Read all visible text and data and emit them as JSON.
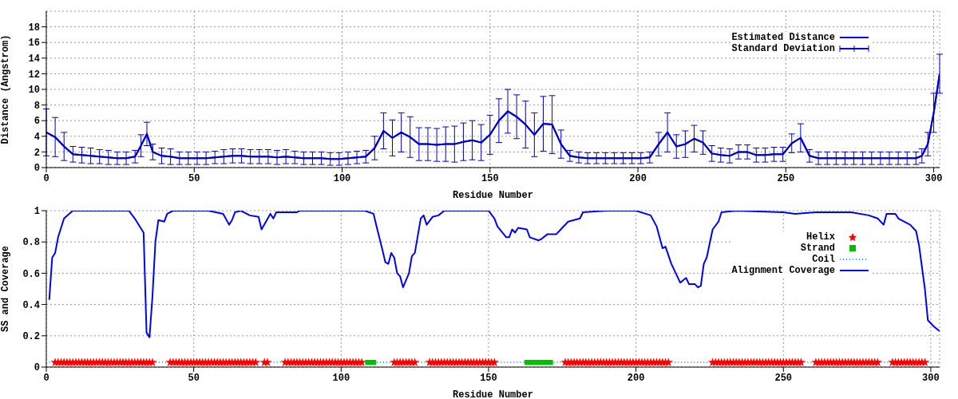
{
  "chart_data": [
    {
      "type": "line",
      "xlabel": "Residue Number",
      "ylabel": "Distance (Angstrom)",
      "xlim": [
        0,
        302
      ],
      "xticks": [
        0,
        50,
        100,
        150,
        200,
        250,
        300
      ],
      "ylim": [
        0,
        20
      ],
      "yticks": [
        0,
        2,
        4,
        6,
        8,
        10,
        12,
        14,
        16,
        18
      ],
      "grid": true,
      "legend": "top right",
      "marker": "none",
      "x": [
        0,
        3,
        6,
        9,
        12,
        15,
        18,
        21,
        24,
        27,
        30,
        32,
        34,
        36,
        39,
        42,
        45,
        48,
        51,
        54,
        57,
        60,
        63,
        66,
        69,
        72,
        75,
        78,
        81,
        84,
        87,
        90,
        93,
        96,
        99,
        102,
        105,
        108,
        111,
        114,
        117,
        120,
        123,
        126,
        129,
        132,
        135,
        138,
        141,
        144,
        147,
        150,
        153,
        156,
        159,
        162,
        165,
        168,
        171,
        174,
        177,
        180,
        183,
        186,
        189,
        192,
        195,
        198,
        201,
        204,
        207,
        210,
        213,
        216,
        219,
        222,
        225,
        228,
        231,
        234,
        237,
        240,
        243,
        246,
        249,
        252,
        255,
        258,
        261,
        264,
        267,
        270,
        273,
        276,
        279,
        282,
        285,
        288,
        291,
        294,
        296,
        298,
        300,
        302
      ],
      "series": [
        {
          "name": "Estimated Distance",
          "color": "#0000ff",
          "values": [
            4.5,
            3.9,
            2.7,
            1.7,
            1.6,
            1.5,
            1.4,
            1.3,
            1.2,
            1.2,
            1.4,
            2.8,
            4.3,
            2.0,
            1.5,
            1.4,
            1.2,
            1.2,
            1.2,
            1.2,
            1.3,
            1.4,
            1.5,
            1.5,
            1.4,
            1.4,
            1.4,
            1.3,
            1.4,
            1.3,
            1.2,
            1.2,
            1.2,
            1.1,
            1.1,
            1.2,
            1.3,
            1.4,
            2.5,
            4.7,
            3.8,
            4.5,
            3.9,
            3.0,
            3.0,
            2.9,
            3.0,
            3.0,
            3.3,
            3.5,
            3.2,
            4.2,
            6.0,
            7.2,
            6.5,
            5.5,
            4.2,
            5.6,
            5.5,
            3.0,
            1.5,
            1.3,
            1.2,
            1.2,
            1.2,
            1.2,
            1.2,
            1.2,
            1.2,
            1.3,
            3.0,
            4.5,
            2.7,
            3.0,
            3.7,
            3.2,
            1.8,
            1.6,
            1.5,
            2.0,
            2.0,
            1.6,
            1.6,
            1.7,
            1.7,
            3.1,
            3.8,
            1.5,
            1.2,
            1.2,
            1.2,
            1.2,
            1.2,
            1.2,
            1.2,
            1.2,
            1.2,
            1.2,
            1.2,
            1.2,
            1.5,
            3.0,
            7.0,
            12.0
          ]
        },
        {
          "name": "Standard Deviation",
          "color": "#0000cc",
          "values": [
            4.5,
            3.9,
            2.7,
            1.7,
            1.6,
            1.5,
            1.4,
            1.3,
            1.2,
            1.2,
            1.4,
            2.8,
            4.3,
            2.0,
            1.5,
            1.4,
            1.2,
            1.2,
            1.2,
            1.2,
            1.3,
            1.4,
            1.5,
            1.5,
            1.4,
            1.4,
            1.4,
            1.3,
            1.4,
            1.3,
            1.2,
            1.2,
            1.2,
            1.1,
            1.1,
            1.2,
            1.3,
            1.4,
            2.5,
            4.7,
            3.8,
            4.5,
            3.9,
            3.0,
            3.0,
            2.9,
            3.0,
            3.0,
            3.3,
            3.5,
            3.2,
            4.2,
            6.0,
            7.2,
            6.5,
            5.5,
            4.2,
            5.6,
            5.5,
            3.0,
            1.5,
            1.3,
            1.2,
            1.2,
            1.2,
            1.2,
            1.2,
            1.2,
            1.2,
            1.3,
            3.0,
            4.5,
            2.7,
            3.0,
            3.7,
            3.2,
            1.8,
            1.6,
            1.5,
            2.0,
            2.0,
            1.6,
            1.6,
            1.7,
            1.7,
            3.1,
            3.8,
            1.5,
            1.2,
            1.2,
            1.2,
            1.2,
            1.2,
            1.2,
            1.2,
            1.2,
            1.2,
            1.2,
            1.2,
            1.2,
            1.5,
            3.0,
            7.0,
            12.0
          ],
          "errors": [
            3,
            2.5,
            1.8,
            1.0,
            1.0,
            1.0,
            0.9,
            0.9,
            0.8,
            0.8,
            0.8,
            1.4,
            1.5,
            1.0,
            1.0,
            1.0,
            0.8,
            0.8,
            0.8,
            0.8,
            0.8,
            0.9,
            0.9,
            0.9,
            0.9,
            0.9,
            0.9,
            0.9,
            0.9,
            0.8,
            0.8,
            0.8,
            0.8,
            0.8,
            0.8,
            0.8,
            0.8,
            0.8,
            1.5,
            2.3,
            2.3,
            2.5,
            2.6,
            2.1,
            2.1,
            2.1,
            2.2,
            2.3,
            2.4,
            2.5,
            2.3,
            2.5,
            2.8,
            2.8,
            2.8,
            3.0,
            2.8,
            3.5,
            3.7,
            1.8,
            0.7,
            0.7,
            0.7,
            0.7,
            0.7,
            0.7,
            0.7,
            0.7,
            0.7,
            0.7,
            1.5,
            2.5,
            1.5,
            1.7,
            1.7,
            1.5,
            1.0,
            0.9,
            0.9,
            0.9,
            0.9,
            0.9,
            0.9,
            0.9,
            0.9,
            1.2,
            1.8,
            0.8,
            0.8,
            0.8,
            0.8,
            0.8,
            0.8,
            0.8,
            0.8,
            0.8,
            0.8,
            0.8,
            0.8,
            0.8,
            0.9,
            1.5,
            2.5,
            2.5
          ]
        }
      ]
    },
    {
      "type": "line",
      "xlabel": "Residue Number",
      "ylabel": "SS and Coverage",
      "xlim": [
        0,
        303
      ],
      "xticks": [
        0,
        50,
        100,
        150,
        200,
        250,
        300
      ],
      "ylim": [
        0,
        1
      ],
      "yticks": [
        0,
        0.2,
        0.4,
        0.6,
        0.8,
        1
      ],
      "grid": true,
      "legend": "top right",
      "series": [
        {
          "name": "Helix",
          "type": "scatter",
          "marker": "star",
          "color": "#ff0000",
          "x": [
            3,
            4,
            5,
            6,
            7,
            8,
            9,
            10,
            11,
            12,
            13,
            14,
            15,
            16,
            17,
            18,
            19,
            20,
            21,
            22,
            23,
            24,
            25,
            26,
            27,
            28,
            29,
            30,
            31,
            32,
            33,
            34,
            35,
            36,
            42,
            43,
            44,
            45,
            46,
            47,
            48,
            49,
            50,
            51,
            52,
            53,
            54,
            55,
            56,
            57,
            58,
            59,
            60,
            61,
            62,
            63,
            64,
            65,
            66,
            67,
            68,
            69,
            70,
            71,
            74,
            75,
            81,
            82,
            83,
            84,
            85,
            86,
            87,
            88,
            89,
            90,
            91,
            92,
            93,
            94,
            95,
            96,
            97,
            98,
            99,
            100,
            101,
            102,
            103,
            104,
            105,
            106,
            107,
            118,
            119,
            120,
            121,
            122,
            123,
            124,
            125,
            130,
            131,
            132,
            133,
            134,
            135,
            136,
            137,
            138,
            139,
            140,
            141,
            142,
            143,
            144,
            145,
            146,
            147,
            148,
            149,
            150,
            151,
            152,
            176,
            177,
            178,
            179,
            180,
            181,
            182,
            183,
            184,
            185,
            186,
            187,
            188,
            189,
            190,
            191,
            192,
            193,
            194,
            195,
            196,
            197,
            198,
            199,
            200,
            201,
            202,
            203,
            204,
            205,
            206,
            207,
            208,
            209,
            210,
            211,
            226,
            227,
            228,
            229,
            230,
            231,
            232,
            233,
            234,
            235,
            236,
            237,
            238,
            239,
            240,
            241,
            242,
            243,
            244,
            245,
            246,
            247,
            248,
            249,
            250,
            251,
            252,
            253,
            254,
            255,
            256,
            261,
            262,
            263,
            264,
            265,
            266,
            267,
            268,
            269,
            270,
            271,
            272,
            273,
            274,
            275,
            276,
            277,
            278,
            279,
            280,
            281,
            282,
            287,
            288,
            289,
            290,
            291,
            292,
            293,
            294,
            295,
            296,
            297,
            298
          ],
          "values": [
            0.03,
            0.03,
            0.03,
            0.03,
            0.03,
            0.03,
            0.03,
            0.03,
            0.03,
            0.03,
            0.03,
            0.03,
            0.03,
            0.03,
            0.03,
            0.03,
            0.03,
            0.03,
            0.03,
            0.03,
            0.03,
            0.03,
            0.03,
            0.03,
            0.03,
            0.03,
            0.03,
            0.03,
            0.03,
            0.03,
            0.03,
            0.03,
            0.03,
            0.03,
            0.03,
            0.03,
            0.03,
            0.03,
            0.03,
            0.03,
            0.03,
            0.03,
            0.03,
            0.03,
            0.03,
            0.03,
            0.03,
            0.03,
            0.03,
            0.03,
            0.03,
            0.03,
            0.03,
            0.03,
            0.03,
            0.03,
            0.03,
            0.03,
            0.03,
            0.03,
            0.03,
            0.03,
            0.03,
            0.03,
            0.03,
            0.03,
            0.03,
            0.03,
            0.03,
            0.03,
            0.03,
            0.03,
            0.03,
            0.03,
            0.03,
            0.03,
            0.03,
            0.03,
            0.03,
            0.03,
            0.03,
            0.03,
            0.03,
            0.03,
            0.03,
            0.03,
            0.03,
            0.03,
            0.03,
            0.03,
            0.03,
            0.03,
            0.03,
            0.03,
            0.03,
            0.03,
            0.03,
            0.03,
            0.03,
            0.03,
            0.03,
            0.03,
            0.03,
            0.03,
            0.03,
            0.03,
            0.03,
            0.03,
            0.03,
            0.03,
            0.03,
            0.03,
            0.03,
            0.03,
            0.03,
            0.03,
            0.03,
            0.03,
            0.03,
            0.03,
            0.03,
            0.03,
            0.03,
            0.03,
            0.03,
            0.03,
            0.03,
            0.03,
            0.03,
            0.03,
            0.03,
            0.03,
            0.03,
            0.03,
            0.03,
            0.03,
            0.03,
            0.03,
            0.03,
            0.03,
            0.03,
            0.03,
            0.03,
            0.03,
            0.03,
            0.03,
            0.03,
            0.03,
            0.03,
            0.03,
            0.03,
            0.03,
            0.03,
            0.03,
            0.03,
            0.03,
            0.03,
            0.03,
            0.03,
            0.03,
            0.03,
            0.03,
            0.03,
            0.03,
            0.03,
            0.03,
            0.03,
            0.03,
            0.03,
            0.03,
            0.03,
            0.03,
            0.03,
            0.03,
            0.03,
            0.03,
            0.03,
            0.03,
            0.03,
            0.03,
            0.03,
            0.03,
            0.03,
            0.03,
            0.03,
            0.03,
            0.03,
            0.03,
            0.03,
            0.03,
            0.03,
            0.03,
            0.03,
            0.03,
            0.03,
            0.03,
            0.03,
            0.03,
            0.03,
            0.03,
            0.03,
            0.03,
            0.03,
            0.03,
            0.03,
            0.03,
            0.03,
            0.03,
            0.03,
            0.03,
            0.03,
            0.03,
            0.03,
            0.03,
            0.03,
            0.03,
            0.03,
            0.03,
            0.03,
            0.03,
            0.03,
            0.03,
            0.03,
            0.03,
            0.03
          ]
        },
        {
          "name": "Strand",
          "type": "scatter",
          "marker": "square",
          "color": "#00c000",
          "x": [
            109,
            110,
            111,
            163,
            164,
            165,
            166,
            167,
            168,
            169,
            170,
            171
          ],
          "values": [
            0.03,
            0.03,
            0.03,
            0.03,
            0.03,
            0.03,
            0.03,
            0.03,
            0.03,
            0.03,
            0.03,
            0.03
          ]
        },
        {
          "name": "Coil",
          "line_style": "dotted",
          "marker": "none",
          "color": "#3399ff",
          "x": [
            1,
            3,
            20,
            36,
            42,
            56,
            71,
            74,
            74.5,
            76,
            81,
            94,
            111,
            118,
            121,
            125,
            130,
            140,
            152,
            163,
            167,
            171,
            176,
            190,
            211,
            226,
            240,
            256,
            261,
            270,
            282,
            287,
            292,
            298,
            303
          ],
          "values": [
            0.03,
            0.03,
            null,
            0.03,
            0.03,
            null,
            0.03,
            0.03,
            null,
            0.03,
            0.03,
            null,
            0.03,
            0.03,
            null,
            0.03,
            0.03,
            null,
            0.03,
            0.03,
            null,
            0.03,
            0.03,
            null,
            0.03,
            0.03,
            null,
            0.03,
            0.03,
            null,
            0.03,
            0.03,
            null,
            0.03,
            0.03
          ]
        },
        {
          "name": "Alignment Coverage",
          "marker": "none",
          "color": "#0000ff",
          "x": [
            1,
            2,
            3,
            4,
            6,
            9,
            28,
            30,
            33,
            34,
            35,
            36,
            37,
            38,
            40,
            41,
            43,
            55,
            60,
            62,
            63,
            64,
            66,
            69,
            72,
            73,
            76,
            77,
            78,
            85,
            86,
            108,
            111,
            112,
            114,
            115,
            116,
            117,
            118,
            119,
            120,
            121,
            123,
            124,
            125,
            127,
            128,
            129,
            131,
            133,
            135,
            147,
            150,
            152,
            153,
            156,
            157,
            158,
            159,
            160,
            163,
            164,
            167,
            168,
            170,
            173,
            175,
            177,
            181,
            182,
            190,
            200,
            205,
            207,
            209,
            210,
            212,
            215,
            217,
            218,
            220,
            221,
            222,
            223,
            224,
            226,
            228,
            229,
            234,
            250,
            254,
            261,
            273,
            279,
            282,
            284,
            285,
            288,
            289,
            293,
            295,
            296,
            298,
            299,
            301,
            303
          ],
          "values": [
            0.43,
            0.7,
            0.73,
            0.83,
            0.95,
            1.0,
            1.0,
            0.95,
            0.86,
            0.22,
            0.19,
            0.45,
            0.8,
            0.94,
            0.93,
            0.98,
            1.0,
            1.0,
            0.98,
            0.91,
            0.94,
            0.99,
            1.0,
            0.97,
            0.96,
            0.88,
            0.98,
            0.95,
            0.99,
            0.99,
            1.0,
            1.0,
            0.98,
            0.9,
            0.75,
            0.67,
            0.66,
            0.73,
            0.7,
            0.6,
            0.58,
            0.51,
            0.6,
            0.71,
            0.73,
            0.95,
            0.97,
            0.91,
            0.96,
            0.97,
            1.0,
            1.0,
            1.0,
            0.95,
            0.9,
            0.83,
            0.83,
            0.88,
            0.86,
            0.89,
            0.88,
            0.83,
            0.81,
            0.82,
            0.85,
            0.85,
            0.89,
            0.93,
            0.95,
            0.99,
            1.0,
            1.0,
            0.97,
            0.9,
            0.76,
            0.77,
            0.66,
            0.54,
            0.57,
            0.53,
            0.53,
            0.51,
            0.52,
            0.66,
            0.7,
            0.88,
            0.93,
            0.99,
            1.0,
            0.99,
            0.98,
            0.99,
            0.99,
            0.97,
            0.95,
            0.91,
            0.98,
            0.98,
            0.95,
            0.91,
            0.87,
            0.78,
            0.5,
            0.3,
            0.26,
            0.23
          ]
        }
      ]
    }
  ]
}
